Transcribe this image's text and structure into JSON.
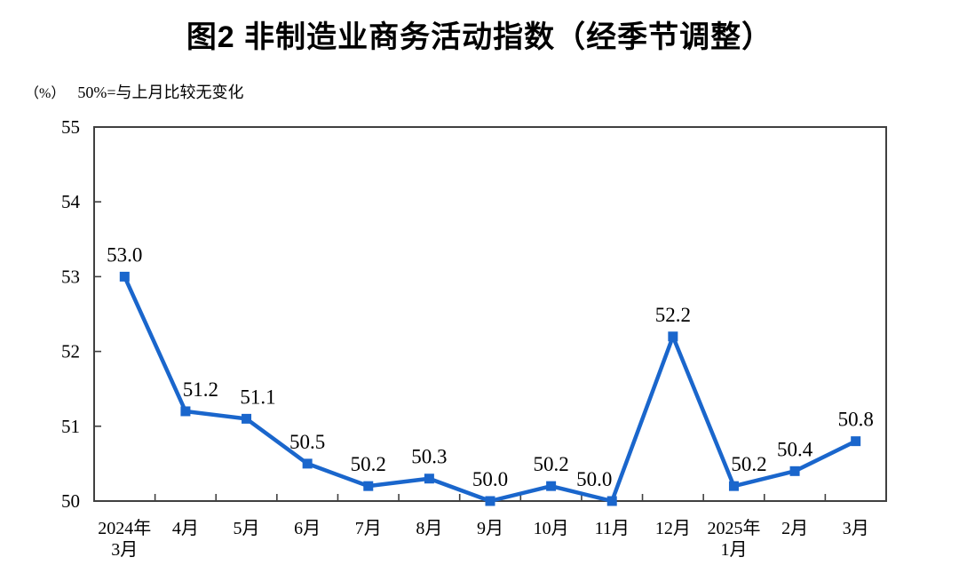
{
  "header": {
    "title": "图2 非制造业商务活动指数（经季节调整）"
  },
  "axis_note": {
    "unit": "（%）",
    "baseline_note": "50%=与上月比较无变化"
  },
  "chart_data": {
    "type": "line",
    "title": "图2 非制造业商务活动指数（经季节调整）",
    "subtitle": "50%=与上月比较无变化",
    "unit": "%",
    "categories": [
      "2024年3月",
      "4月",
      "5月",
      "6月",
      "7月",
      "8月",
      "9月",
      "10月",
      "11月",
      "12月",
      "2025年1月",
      "2月",
      "3月"
    ],
    "category_lines": [
      [
        "2024年",
        "3月"
      ],
      [
        "4月"
      ],
      [
        "5月"
      ],
      [
        "6月"
      ],
      [
        "7月"
      ],
      [
        "8月"
      ],
      [
        "9月"
      ],
      [
        "10月"
      ],
      [
        "11月"
      ],
      [
        "12月"
      ],
      [
        "2025年",
        "1月"
      ],
      [
        "2月"
      ],
      [
        "3月"
      ]
    ],
    "series": [
      {
        "name": "非制造业商务活动指数",
        "values": [
          53.0,
          51.2,
          51.1,
          50.5,
          50.2,
          50.3,
          50.0,
          50.2,
          50.0,
          52.2,
          50.2,
          50.4,
          50.8
        ],
        "data_labels": [
          "53.0",
          "51.2",
          "51.1",
          "50.5",
          "50.2",
          "50.3",
          "50.0",
          "50.2",
          "50.0",
          "52.2",
          "50.2",
          "50.4",
          "50.8"
        ]
      }
    ],
    "ylim": [
      50,
      55
    ],
    "yticks": [
      50,
      51,
      52,
      53,
      54,
      55
    ],
    "grid": false,
    "legend_position": "none",
    "marker": "square",
    "colors": {
      "line": "#1a66cc",
      "marker": "#1a66cc",
      "axis": "#404040",
      "text": "#000000"
    }
  }
}
